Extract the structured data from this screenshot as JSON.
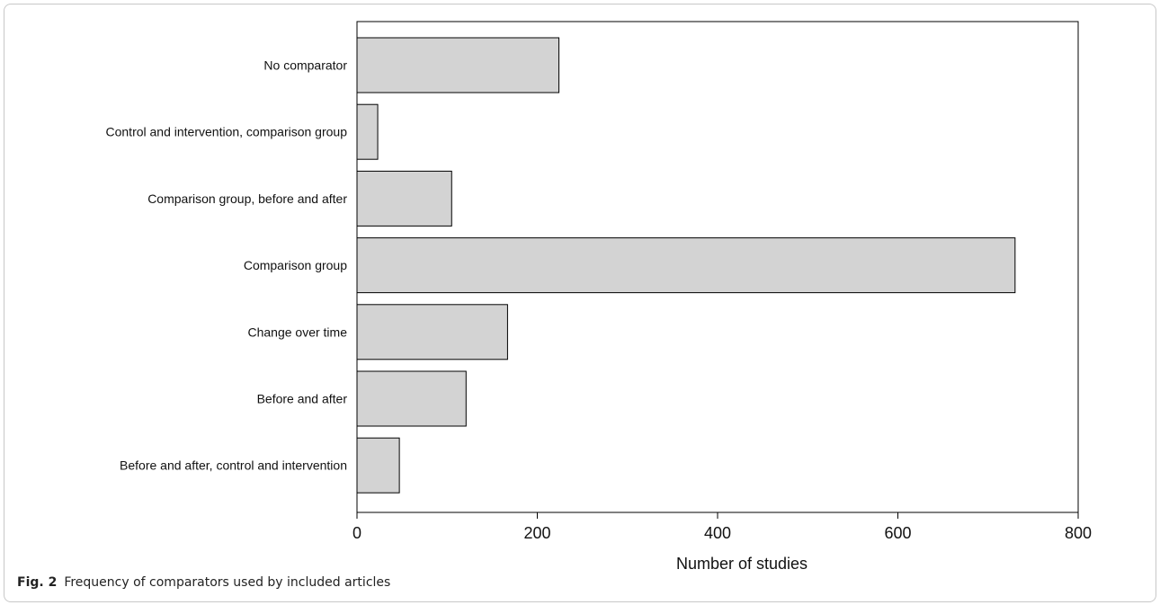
{
  "chart_data": {
    "type": "bar",
    "orientation": "horizontal",
    "categories": [
      "No comparator",
      "Control and intervention, comparison group",
      "Comparison group, before and after",
      "Comparison group",
      "Change over time",
      "Before and after",
      "Before and after, control and intervention"
    ],
    "values": [
      224,
      23,
      105,
      730,
      167,
      121,
      47
    ],
    "xlabel": "Number of studies",
    "ylabel": "",
    "xlim": [
      0,
      800
    ],
    "xticks": [
      "0",
      "200",
      "400",
      "600",
      "800"
    ],
    "bar_color": "#d3d3d3",
    "bar_stroke": "#000000",
    "grid": false
  },
  "caption": {
    "label": "Fig. 2",
    "text": "Frequency of comparators used by included articles"
  }
}
